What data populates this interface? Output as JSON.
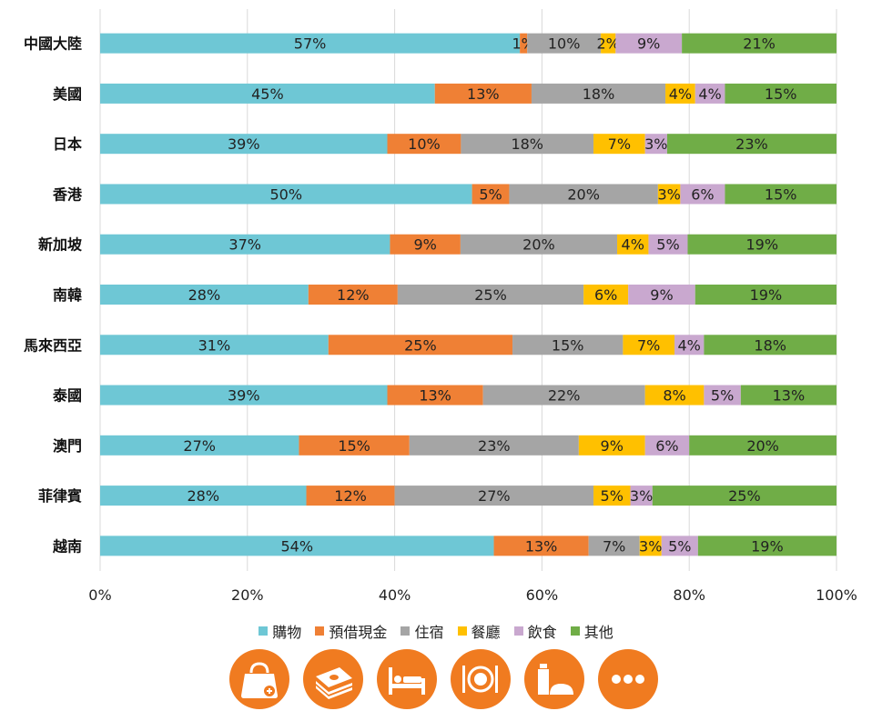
{
  "chart_data": {
    "type": "bar",
    "orientation": "horizontal",
    "stacked": true,
    "percent": true,
    "categories": [
      "中國大陸",
      "美國",
      "日本",
      "香港",
      "新加坡",
      "南韓",
      "馬來西亞",
      "泰國",
      "澳門",
      "菲律賓",
      "越南"
    ],
    "series": [
      {
        "name": "購物",
        "color": "#6ec7d5",
        "values": [
          57,
          45,
          39,
          50,
          37,
          28,
          31,
          39,
          27,
          28,
          54
        ]
      },
      {
        "name": "預借現金",
        "color": "#ef8035",
        "values": [
          1,
          13,
          10,
          5,
          9,
          12,
          25,
          13,
          15,
          12,
          13
        ]
      },
      {
        "name": "住宿",
        "color": "#a5a5a5",
        "values": [
          10,
          18,
          18,
          20,
          20,
          25,
          15,
          22,
          23,
          27,
          7
        ]
      },
      {
        "name": "餐廳",
        "color": "#ffc000",
        "values": [
          2,
          4,
          7,
          3,
          4,
          6,
          7,
          8,
          9,
          5,
          3
        ]
      },
      {
        "name": "飲食",
        "color": "#c9a8cf",
        "values": [
          9,
          4,
          3,
          6,
          5,
          9,
          4,
          5,
          6,
          3,
          5
        ]
      },
      {
        "name": "其他",
        "color": "#70ad47",
        "values": [
          21,
          15,
          23,
          15,
          19,
          19,
          18,
          13,
          20,
          25,
          19
        ]
      }
    ],
    "xlim": [
      0,
      100
    ],
    "xticks": [
      "0%",
      "20%",
      "40%",
      "60%",
      "80%",
      "100%"
    ],
    "grid": true,
    "legend": "bottom"
  },
  "legend_labels": [
    "購物",
    "預借現金",
    "住宿",
    "餐廳",
    "飲食",
    "其他"
  ],
  "icons": [
    {
      "name": "shopping-bag-icon"
    },
    {
      "name": "cash-icon"
    },
    {
      "name": "bed-icon"
    },
    {
      "name": "dining-icon"
    },
    {
      "name": "food-drink-icon"
    },
    {
      "name": "more-icon"
    }
  ]
}
